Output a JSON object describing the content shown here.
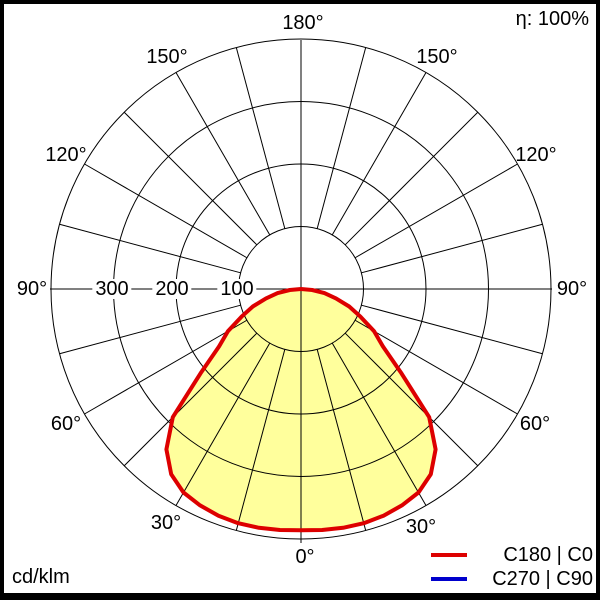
{
  "header": {
    "efficiency_label": "η: 100%"
  },
  "footer": {
    "unit_label": "cd/klm"
  },
  "legend": [
    {
      "label": "C180 | C0",
      "color": "#dd0000"
    },
    {
      "label": "C270 | C90",
      "color": "#0000cc"
    }
  ],
  "chart_data": {
    "type": "polar-photometric",
    "title": "Luminaire polar intensity diagram",
    "unit": "cd/klm",
    "efficiency": "100%",
    "gamma_deg": [
      0,
      5,
      10,
      15,
      20,
      25,
      30,
      35,
      40,
      45,
      50,
      55,
      60,
      65,
      70,
      75,
      80,
      85,
      90
    ],
    "series": [
      {
        "name": "C180 | C0",
        "color": "#dd0000",
        "symmetric": true,
        "values_cd_per_klm": [
          386,
          387,
          388,
          388,
          386,
          382,
          376,
          362,
          335,
          290,
          210,
          160,
          135,
          105,
          82,
          58,
          38,
          18,
          0
        ]
      },
      {
        "name": "C270 | C90",
        "color": "#0000cc",
        "symmetric": true,
        "values_cd_per_klm": [
          386,
          387,
          388,
          388,
          386,
          382,
          376,
          362,
          335,
          290,
          210,
          160,
          135,
          105,
          82,
          58,
          38,
          18,
          0
        ],
        "note": "curve coincides with C180 | C0 and is hidden beneath it"
      }
    ],
    "radial_ticks": [
      100,
      200,
      300
    ],
    "radial_max": 400,
    "fill_color": "#ffff9c",
    "grid_color": "#000000",
    "angle_label_texts": [
      "180°",
      "150°",
      "150°",
      "120°",
      "120°",
      "90°",
      "90°",
      "60°",
      "60°",
      "30°",
      "30°",
      "0°"
    ],
    "radial_label_texts": [
      "300",
      "200",
      "100"
    ]
  }
}
